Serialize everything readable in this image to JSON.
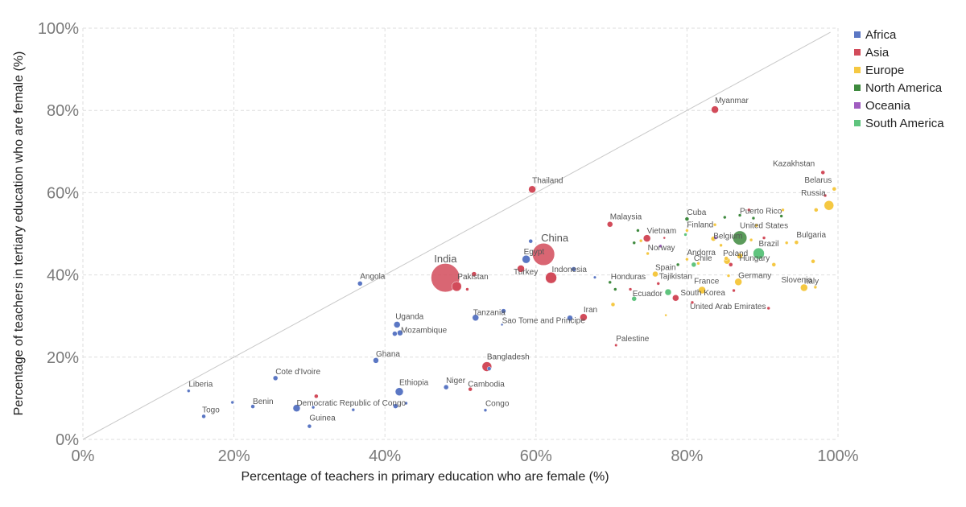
{
  "chart_data": {
    "type": "scatter",
    "xlabel": "Percentage of teachers in primary education who are female (%)",
    "ylabel": "Percentage of teachers in tertiary education who are female (%)",
    "xlim": [
      0,
      100
    ],
    "ylim": [
      0,
      100
    ],
    "x_ticks": [
      {
        "value": 0,
        "label": "0%"
      },
      {
        "value": 20,
        "label": "20%"
      },
      {
        "value": 40,
        "label": "40%"
      },
      {
        "value": 60,
        "label": "60%"
      },
      {
        "value": 80,
        "label": "80%"
      },
      {
        "value": 100,
        "label": "100%"
      }
    ],
    "y_ticks": [
      {
        "value": 0,
        "label": "0%"
      },
      {
        "value": 20,
        "label": "20%"
      },
      {
        "value": 40,
        "label": "40%"
      },
      {
        "value": 60,
        "label": "60%"
      },
      {
        "value": 80,
        "label": "80%"
      },
      {
        "value": 100,
        "label": "100%"
      }
    ],
    "grid": true,
    "reference_line": "y = x",
    "legend": {
      "position": "right",
      "entries": [
        {
          "name": "Africa",
          "color": "#5b77c4"
        },
        {
          "name": "Asia",
          "color": "#d24b5a"
        },
        {
          "name": "Europe",
          "color": "#f5c842"
        },
        {
          "name": "North America",
          "color": "#3e8a3e"
        },
        {
          "name": "Oceania",
          "color": "#a05dc0"
        },
        {
          "name": "South America",
          "color": "#5fc47e"
        }
      ]
    },
    "points": [
      {
        "label": "India",
        "x": 48.0,
        "y": 39.3,
        "region": "Asia",
        "size": 18
      },
      {
        "label": "China",
        "x": 61.0,
        "y": 45.0,
        "region": "Asia",
        "size": 14
      },
      {
        "label": "Indonesia",
        "x": 62.0,
        "y": 39.3,
        "region": "Asia",
        "size": 7
      },
      {
        "label": "Pakistan",
        "x": 49.5,
        "y": 37.2,
        "region": "Asia",
        "size": 6
      },
      {
        "label": "Turkey",
        "x": 58.0,
        "y": 41.5,
        "region": "Asia",
        "size": 4.5
      },
      {
        "label": "Egypt",
        "x": 58.7,
        "y": 43.8,
        "region": "Africa",
        "size": 5
      },
      {
        "label": "Thailand",
        "x": 59.5,
        "y": 60.8,
        "region": "Asia",
        "size": 4.5
      },
      {
        "label": "Myanmar",
        "x": 83.7,
        "y": 80.2,
        "region": "Asia",
        "size": 4.5
      },
      {
        "label": "Bangladesh",
        "x": 53.5,
        "y": 17.7,
        "region": "Asia",
        "size": 6
      },
      {
        "label": "Iran",
        "x": 66.3,
        "y": 29.7,
        "region": "Asia",
        "size": 4.5
      },
      {
        "label": "Palestine",
        "x": 70.6,
        "y": 22.9,
        "region": "Asia",
        "size": 1.8
      },
      {
        "label": "Malaysia",
        "x": 69.8,
        "y": 52.3,
        "region": "Asia",
        "size": 3.5
      },
      {
        "label": "Vietnam",
        "x": 74.7,
        "y": 48.9,
        "region": "Asia",
        "size": 4.5
      },
      {
        "label": "South Korea",
        "x": 78.5,
        "y": 34.4,
        "region": "Asia",
        "size": 4
      },
      {
        "label": "United Arab Emirates",
        "x": 80.7,
        "y": 33.3,
        "region": "Asia",
        "size": 2
      },
      {
        "label": "Tajikistan",
        "x": 76.2,
        "y": 37.9,
        "region": "Asia",
        "size": 2
      },
      {
        "label": "Kazakhstan",
        "x": 98.0,
        "y": 64.9,
        "region": "Asia",
        "size": 2.5
      },
      {
        "label": "Cambodia",
        "x": 51.3,
        "y": 12.2,
        "region": "Asia",
        "size": 2.5
      },
      {
        "label": "Africa 14",
        "x": 51.8,
        "y": 40.2,
        "region": "Asia",
        "size": 3
      },
      {
        "label": "Africa 15",
        "x": 50.9,
        "y": 36.5,
        "region": "Asia",
        "size": 2
      },
      {
        "label": "Asia extra 1",
        "x": 90.8,
        "y": 31.9,
        "region": "Asia",
        "size": 2
      },
      {
        "label": "Asia extra 2",
        "x": 30.9,
        "y": 10.5,
        "region": "Asia",
        "size": 2.5
      },
      {
        "label": "Asia extra 3",
        "x": 85.8,
        "y": 42.5,
        "region": "Asia",
        "size": 2.5
      },
      {
        "label": "Asia extra 4",
        "x": 86.2,
        "y": 36.2,
        "region": "Asia",
        "size": 2
      },
      {
        "label": "Asia extra 5",
        "x": 90.2,
        "y": 49.0,
        "region": "Asia",
        "size": 2
      },
      {
        "label": "Asia extra 6",
        "x": 98.3,
        "y": 59.3,
        "region": "Asia",
        "size": 2
      },
      {
        "label": "Asia extra 7",
        "x": 88.2,
        "y": 55.8,
        "region": "Asia",
        "size": 2
      },
      {
        "label": "Asia extra 8",
        "x": 72.5,
        "y": 36.5,
        "region": "Asia",
        "size": 2
      },
      {
        "label": "Asia extra 9",
        "x": 77.0,
        "y": 49.0,
        "region": "Asia",
        "size": 1.5
      },
      {
        "label": "Liberia",
        "x": 14.0,
        "y": 11.8,
        "region": "Africa",
        "size": 2
      },
      {
        "label": "Togo",
        "x": 16.0,
        "y": 5.6,
        "region": "Africa",
        "size": 2.5
      },
      {
        "label": "Benin",
        "x": 22.5,
        "y": 8.0,
        "region": "Africa",
        "size": 2.5
      },
      {
        "label": "Cote d'Ivoire",
        "x": 25.5,
        "y": 14.9,
        "region": "Africa",
        "size": 3
      },
      {
        "label": "Democratic Republic of Congo",
        "x": 28.3,
        "y": 7.6,
        "region": "Africa",
        "size": 4.5
      },
      {
        "label": "Guinea",
        "x": 30.0,
        "y": 3.2,
        "region": "Africa",
        "size": 2.5
      },
      {
        "label": "Angola",
        "x": 36.7,
        "y": 37.9,
        "region": "Africa",
        "size": 3
      },
      {
        "label": "Ghana",
        "x": 38.8,
        "y": 19.2,
        "region": "Africa",
        "size": 3.5
      },
      {
        "label": "Uganda",
        "x": 41.6,
        "y": 27.9,
        "region": "Africa",
        "size": 4
      },
      {
        "label": "Mozambique",
        "x": 42.0,
        "y": 25.9,
        "region": "Africa",
        "size": 3.5
      },
      {
        "label": "Ethiopia",
        "x": 41.9,
        "y": 11.6,
        "region": "Africa",
        "size": 5
      },
      {
        "label": "Niger",
        "x": 48.1,
        "y": 12.7,
        "region": "Africa",
        "size": 3
      },
      {
        "label": "Tanzania",
        "x": 52.0,
        "y": 29.6,
        "region": "Africa",
        "size": 4
      },
      {
        "label": "Sao Tome and Principe",
        "x": 55.5,
        "y": 27.9,
        "region": "Africa",
        "size": 1.5
      },
      {
        "label": "Congo",
        "x": 53.3,
        "y": 7.1,
        "region": "Africa",
        "size": 2
      },
      {
        "label": "Africa extra 1",
        "x": 19.8,
        "y": 9.0,
        "region": "Africa",
        "size": 2
      },
      {
        "label": "Africa extra 2",
        "x": 30.5,
        "y": 7.8,
        "region": "Africa",
        "size": 2
      },
      {
        "label": "Africa extra 3",
        "x": 35.8,
        "y": 7.2,
        "region": "Africa",
        "size": 2
      },
      {
        "label": "Africa extra 4",
        "x": 41.4,
        "y": 8.1,
        "region": "Africa",
        "size": 3
      },
      {
        "label": "Africa extra 5",
        "x": 42.8,
        "y": 8.8,
        "region": "Africa",
        "size": 2
      },
      {
        "label": "Africa extra 6",
        "x": 41.3,
        "y": 25.7,
        "region": "Africa",
        "size": 3
      },
      {
        "label": "Africa extra 7",
        "x": 55.7,
        "y": 31.2,
        "region": "Africa",
        "size": 3
      },
      {
        "label": "Africa extra 8",
        "x": 53.8,
        "y": 17.2,
        "region": "Africa",
        "size": 2.5
      },
      {
        "label": "Africa extra 9",
        "x": 59.3,
        "y": 48.2,
        "region": "Africa",
        "size": 2.5
      },
      {
        "label": "Africa extra 10",
        "x": 64.5,
        "y": 29.5,
        "region": "Africa",
        "size": 3.5
      },
      {
        "label": "Africa extra 11",
        "x": 65.0,
        "y": 41.4,
        "region": "Africa",
        "size": 3
      },
      {
        "label": "Africa extra 12",
        "x": 67.8,
        "y": 39.4,
        "region": "Africa",
        "size": 1.8
      },
      {
        "label": "Russia",
        "x": 98.8,
        "y": 56.9,
        "region": "Europe",
        "size": 6
      },
      {
        "label": "Belarus",
        "x": 99.5,
        "y": 60.9,
        "region": "Europe",
        "size": 2.5
      },
      {
        "label": "Bulgaria",
        "x": 94.5,
        "y": 47.9,
        "region": "Europe",
        "size": 2.5
      },
      {
        "label": "Hungary",
        "x": 91.5,
        "y": 42.5,
        "region": "Europe",
        "size": 2.5
      },
      {
        "label": "Slovenia",
        "x": 97.0,
        "y": 37.0,
        "region": "Europe",
        "size": 2
      },
      {
        "label": "Italy",
        "x": 95.5,
        "y": 36.9,
        "region": "Europe",
        "size": 4.5
      },
      {
        "label": "Germany",
        "x": 86.8,
        "y": 38.3,
        "region": "Europe",
        "size": 4.5
      },
      {
        "label": "France",
        "x": 82.0,
        "y": 36.3,
        "region": "Europe",
        "size": 4.5
      },
      {
        "label": "Poland",
        "x": 85.3,
        "y": 43.4,
        "region": "Europe",
        "size": 4
      },
      {
        "label": "Finland",
        "x": 80.0,
        "y": 50.8,
        "region": "Europe",
        "size": 2
      },
      {
        "label": "Belgium",
        "x": 83.5,
        "y": 48.8,
        "region": "Europe",
        "size": 3
      },
      {
        "label": "Norway",
        "x": 74.8,
        "y": 45.2,
        "region": "Europe",
        "size": 2
      },
      {
        "label": "Andorra",
        "x": 80.0,
        "y": 43.8,
        "region": "Europe",
        "size": 2
      },
      {
        "label": "Spain",
        "x": 75.8,
        "y": 40.2,
        "region": "Europe",
        "size": 3.5
      },
      {
        "label": "Europe extra 1",
        "x": 70.2,
        "y": 32.8,
        "region": "Europe",
        "size": 2.5
      },
      {
        "label": "Europe extra 2",
        "x": 77.2,
        "y": 30.2,
        "region": "Europe",
        "size": 1.5
      },
      {
        "label": "Europe extra 3",
        "x": 83.7,
        "y": 52.2,
        "region": "Europe",
        "size": 2
      },
      {
        "label": "Europe extra 4",
        "x": 84.5,
        "y": 47.2,
        "region": "Europe",
        "size": 2
      },
      {
        "label": "Europe extra 5",
        "x": 85.2,
        "y": 44.0,
        "region": "Europe",
        "size": 2.5
      },
      {
        "label": "Europe extra 6",
        "x": 87.0,
        "y": 44.6,
        "region": "Europe",
        "size": 3.5
      },
      {
        "label": "Europe extra 7",
        "x": 88.5,
        "y": 48.5,
        "region": "Europe",
        "size": 2
      },
      {
        "label": "Europe extra 8",
        "x": 89.2,
        "y": 52.0,
        "region": "Europe",
        "size": 2
      },
      {
        "label": "Europe extra 9",
        "x": 92.7,
        "y": 55.8,
        "region": "Europe",
        "size": 2
      },
      {
        "label": "Europe extra 10",
        "x": 93.2,
        "y": 47.8,
        "region": "Europe",
        "size": 2
      },
      {
        "label": "Europe extra 11",
        "x": 96.7,
        "y": 43.3,
        "region": "Europe",
        "size": 2.5
      },
      {
        "label": "Europe extra 12",
        "x": 97.1,
        "y": 55.8,
        "region": "Europe",
        "size": 2.5
      },
      {
        "label": "Europe extra 13",
        "x": 85.5,
        "y": 39.8,
        "region": "Europe",
        "size": 2
      },
      {
        "label": "Europe extra 14",
        "x": 73.9,
        "y": 48.3,
        "region": "Europe",
        "size": 2
      },
      {
        "label": "Europe extra 15",
        "x": 81.5,
        "y": 42.8,
        "region": "Europe",
        "size": 2
      },
      {
        "label": "United States",
        "x": 87.0,
        "y": 49.0,
        "region": "North America",
        "size": 9
      },
      {
        "label": "Cuba",
        "x": 80.0,
        "y": 53.6,
        "region": "North America",
        "size": 2.5
      },
      {
        "label": "Puerto Rico",
        "x": 87.0,
        "y": 54.5,
        "region": "North America",
        "size": 2
      },
      {
        "label": "Honduras",
        "x": 69.8,
        "y": 38.2,
        "region": "North America",
        "size": 2
      },
      {
        "label": "North America extra 1",
        "x": 73.0,
        "y": 47.8,
        "region": "North America",
        "size": 2
      },
      {
        "label": "North America extra 2",
        "x": 73.5,
        "y": 50.8,
        "region": "North America",
        "size": 2
      },
      {
        "label": "North America extra 3",
        "x": 70.5,
        "y": 36.5,
        "region": "North America",
        "size": 2
      },
      {
        "label": "North America extra 4",
        "x": 78.8,
        "y": 42.5,
        "region": "North America",
        "size": 2
      },
      {
        "label": "North America extra 5",
        "x": 85.0,
        "y": 54.0,
        "region": "North America",
        "size": 2
      },
      {
        "label": "North America extra 6",
        "x": 88.8,
        "y": 53.8,
        "region": "North America",
        "size": 2
      },
      {
        "label": "North America extra 7",
        "x": 92.5,
        "y": 54.3,
        "region": "North America",
        "size": 2
      },
      {
        "label": "Oceania extra 1",
        "x": 76.5,
        "y": 47.0,
        "region": "Oceania",
        "size": 2
      },
      {
        "label": "Oceania extra 2",
        "x": 83.8,
        "y": 49.0,
        "region": "Oceania",
        "size": 2
      },
      {
        "label": "Brazil",
        "x": 89.5,
        "y": 45.2,
        "region": "South America",
        "size": 7
      },
      {
        "label": "Chile",
        "x": 80.9,
        "y": 42.5,
        "region": "South America",
        "size": 3
      },
      {
        "label": "Ecuador",
        "x": 73.0,
        "y": 34.2,
        "region": "South America",
        "size": 3
      },
      {
        "label": "South America extra 1",
        "x": 77.5,
        "y": 35.8,
        "region": "South America",
        "size": 4
      },
      {
        "label": "South America extra 2",
        "x": 79.8,
        "y": 49.8,
        "region": "South America",
        "size": 2
      }
    ],
    "visible_labels": [
      "India",
      "China",
      "Indonesia",
      "Pakistan",
      "Turkey",
      "Egypt",
      "Thailand",
      "Myanmar",
      "Bangladesh",
      "Iran",
      "Palestine",
      "Malaysia",
      "Vietnam",
      "South Korea",
      "United Arab Emirates",
      "Tajikistan",
      "Kazakhstan",
      "Cambodia",
      "Liberia",
      "Togo",
      "Benin",
      "Cote d'Ivoire",
      "Democratic Republic of Congo",
      "Guinea",
      "Angola",
      "Ghana",
      "Uganda",
      "Mozambique",
      "Ethiopia",
      "Niger",
      "Tanzania",
      "Sao Tome and Principe",
      "Congo",
      "Russia",
      "Belarus",
      "Bulgaria",
      "Hungary",
      "Slovenia",
      "Italy",
      "Germany",
      "France",
      "Poland",
      "Finland",
      "Belgium",
      "Norway",
      "Andorra",
      "Spain",
      "United States",
      "Cuba",
      "Puerto Rico",
      "Honduras",
      "Brazil",
      "Chile",
      "Ecuador"
    ]
  }
}
